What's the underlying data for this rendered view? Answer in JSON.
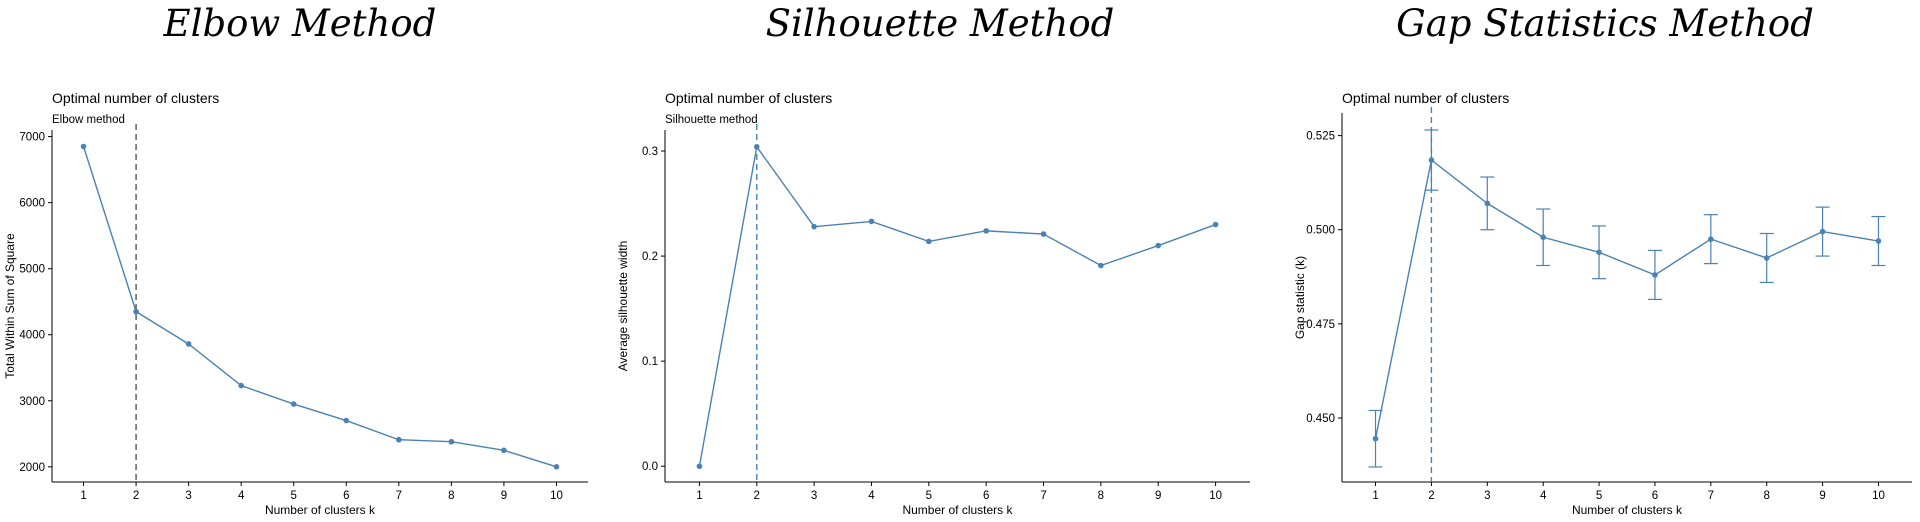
{
  "panel_titles": [
    "Elbow Method",
    "Silhouette Method",
    "Gap Statistics Method"
  ],
  "chart_data": [
    {
      "type": "line",
      "title": "Optimal number of clusters",
      "subtitle": "Elbow method",
      "xlabel": "Number of clusters k",
      "ylabel": "Total Within Sum of Square",
      "x": [
        1,
        2,
        3,
        4,
        5,
        6,
        7,
        8,
        9,
        10
      ],
      "values": [
        6850,
        4350,
        3860,
        3230,
        2950,
        2700,
        2410,
        2380,
        2250,
        2000
      ],
      "xlim": [
        0.4,
        10.6
      ],
      "ylim": [
        1770,
        7100
      ],
      "yticks": [
        2000,
        3000,
        4000,
        5000,
        6000,
        7000
      ],
      "ytick_labels": [
        "2000",
        "3000",
        "4000",
        "5000",
        "6000",
        "7000"
      ],
      "vline": 2,
      "vline_color": "#555555",
      "line_color": "#4a82b4",
      "grid": false
    },
    {
      "type": "line",
      "title": "Optimal number of clusters",
      "subtitle": "Silhouette method",
      "xlabel": "Number of clusters k",
      "ylabel": "Average silhouette width",
      "x": [
        1,
        2,
        3,
        4,
        5,
        6,
        7,
        8,
        9,
        10
      ],
      "values": [
        0.0,
        0.304,
        0.228,
        0.233,
        0.214,
        0.224,
        0.221,
        0.191,
        0.21,
        0.23
      ],
      "xlim": [
        0.4,
        10.6
      ],
      "ylim": [
        -0.015,
        0.32
      ],
      "yticks": [
        0.0,
        0.1,
        0.2,
        0.3
      ],
      "ytick_labels": [
        "0.0",
        "0.1",
        "0.2",
        "0.3"
      ],
      "vline": 2,
      "vline_color": "#4a82b4",
      "line_color": "#4a82b4",
      "grid": false
    },
    {
      "type": "line",
      "title": "Optimal number of clusters",
      "subtitle": "",
      "xlabel": "Number of clusters k",
      "ylabel": "Gap statistic (k)",
      "x": [
        1,
        2,
        3,
        4,
        5,
        6,
        7,
        8,
        9,
        10
      ],
      "values": [
        0.4445,
        0.5185,
        0.507,
        0.498,
        0.494,
        0.488,
        0.4975,
        0.4925,
        0.4995,
        0.497
      ],
      "error": [
        0.0075,
        0.008,
        0.007,
        0.0075,
        0.007,
        0.0065,
        0.0065,
        0.0065,
        0.0065,
        0.0065
      ],
      "xlim": [
        0.4,
        10.6
      ],
      "ylim": [
        0.433,
        0.531
      ],
      "yticks": [
        0.45,
        0.475,
        0.5,
        0.525
      ],
      "ytick_labels": [
        "0.450",
        "0.475",
        "0.500",
        "0.525"
      ],
      "vline": 2,
      "vline_color": "#4a82b4",
      "line_color": "#4a82b4",
      "grid": false
    }
  ]
}
